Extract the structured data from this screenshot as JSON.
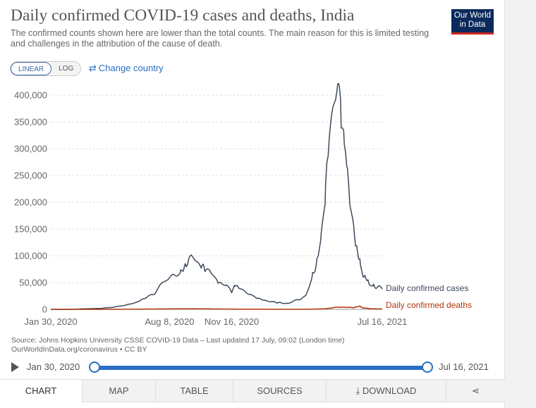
{
  "header": {
    "title": "Daily confirmed COVID-19 cases and deaths, India",
    "subtitle": "The confirmed counts shown here are lower than the total counts. The main reason for this is limited testing and challenges in the attribution of the cause of death.",
    "logo_line1": "Our World",
    "logo_line2": "in Data"
  },
  "controls": {
    "linear_label": "LINEAR",
    "log_label": "LOG",
    "change_country_icon": "swap-arrows-icon",
    "change_country_label": "Change country"
  },
  "chart_data": {
    "type": "line",
    "title": "Daily confirmed COVID-19 cases and deaths, India",
    "ylim": [
      0,
      400000
    ],
    "yticks": [
      0,
      50000,
      100000,
      150000,
      200000,
      250000,
      300000,
      350000,
      400000
    ],
    "ytick_labels": [
      "0",
      "50,000",
      "100,000",
      "150,000",
      "200,000",
      "250,000",
      "300,000",
      "350,000",
      "400,000"
    ],
    "xlim": [
      "2020-01-30",
      "2021-07-16"
    ],
    "xtick_labels": [
      "Jan 30, 2020",
      "Aug 8, 2020",
      "Nov 16, 2020",
      "Jul 16, 2021"
    ],
    "xtick_dates": [
      "2020-01-30",
      "2020-08-08",
      "2020-11-16",
      "2021-07-16"
    ],
    "grid": "horizontal-dashed",
    "colors": {
      "cases": "#3e4a5b",
      "deaths": "#b13507"
    },
    "series": [
      {
        "name": "Daily confirmed cases",
        "points": [
          [
            "2020-01-30",
            0
          ],
          [
            "2020-03-01",
            0
          ],
          [
            "2020-03-31",
            1200
          ],
          [
            "2020-04-20",
            1800
          ],
          [
            "2020-05-10",
            4000
          ],
          [
            "2020-05-31",
            8000
          ],
          [
            "2020-06-20",
            15000
          ],
          [
            "2020-07-05",
            24000
          ],
          [
            "2020-07-15",
            30000
          ],
          [
            "2020-07-25",
            48000
          ],
          [
            "2020-08-05",
            55000
          ],
          [
            "2020-08-15",
            65000
          ],
          [
            "2020-08-25",
            68000
          ],
          [
            "2020-09-01",
            78000
          ],
          [
            "2020-09-08",
            90000
          ],
          [
            "2020-09-12",
            97000
          ],
          [
            "2020-09-16",
            97500
          ],
          [
            "2020-09-20",
            92000
          ],
          [
            "2020-09-24",
            86000
          ],
          [
            "2020-09-28",
            80000
          ],
          [
            "2020-10-01",
            83000
          ],
          [
            "2020-10-06",
            72000
          ],
          [
            "2020-10-12",
            70000
          ],
          [
            "2020-10-18",
            62000
          ],
          [
            "2020-10-24",
            52000
          ],
          [
            "2020-10-31",
            48000
          ],
          [
            "2020-11-08",
            46000
          ],
          [
            "2020-11-16",
            30000
          ],
          [
            "2020-11-20",
            45000
          ],
          [
            "2020-11-27",
            42000
          ],
          [
            "2020-12-05",
            36000
          ],
          [
            "2020-12-15",
            27000
          ],
          [
            "2020-12-25",
            22000
          ],
          [
            "2021-01-05",
            18000
          ],
          [
            "2021-01-15",
            15000
          ],
          [
            "2021-01-25",
            13000
          ],
          [
            "2021-02-05",
            12000
          ],
          [
            "2021-02-15",
            11000
          ],
          [
            "2021-02-25",
            16000
          ],
          [
            "2021-03-05",
            18000
          ],
          [
            "2021-03-15",
            26000
          ],
          [
            "2021-03-25",
            59000
          ],
          [
            "2021-04-01",
            81000
          ],
          [
            "2021-04-08",
            126000
          ],
          [
            "2021-04-15",
            200000
          ],
          [
            "2021-04-22",
            332000
          ],
          [
            "2021-04-30",
            386000
          ],
          [
            "2021-05-06",
            414000
          ],
          [
            "2021-05-10",
            370000
          ],
          [
            "2021-05-15",
            326000
          ],
          [
            "2021-05-20",
            276000
          ],
          [
            "2021-05-25",
            208000
          ],
          [
            "2021-05-31",
            153000
          ],
          [
            "2021-06-05",
            114000
          ],
          [
            "2021-06-10",
            92000
          ],
          [
            "2021-06-15",
            62000
          ],
          [
            "2021-06-20",
            59000
          ],
          [
            "2021-06-25",
            48000
          ],
          [
            "2021-07-01",
            46000
          ],
          [
            "2021-07-06",
            40000
          ],
          [
            "2021-07-10",
            42000
          ],
          [
            "2021-07-16",
            38000
          ]
        ]
      },
      {
        "name": "Daily confirmed deaths",
        "points": [
          [
            "2020-01-30",
            0
          ],
          [
            "2020-03-31",
            20
          ],
          [
            "2020-05-15",
            120
          ],
          [
            "2020-06-15",
            350
          ],
          [
            "2020-07-15",
            600
          ],
          [
            "2020-08-15",
            950
          ],
          [
            "2020-09-15",
            1150
          ],
          [
            "2020-10-15",
            800
          ],
          [
            "2020-11-15",
            450
          ],
          [
            "2020-12-15",
            350
          ],
          [
            "2021-01-15",
            180
          ],
          [
            "2021-02-15",
            100
          ],
          [
            "2021-03-15",
            150
          ],
          [
            "2021-04-01",
            450
          ],
          [
            "2021-04-15",
            1100
          ],
          [
            "2021-05-01",
            3500
          ],
          [
            "2021-05-15",
            4100
          ],
          [
            "2021-06-01",
            3200
          ],
          [
            "2021-06-10",
            6100
          ],
          [
            "2021-06-15",
            2500
          ],
          [
            "2021-07-01",
            1100
          ],
          [
            "2021-07-16",
            700
          ]
        ]
      }
    ]
  },
  "source": {
    "line1": "Source: Johns Hopkins University CSSE COVID-19 Data – Last updated 17 July, 09:02 (London time)",
    "line2": "OurWorldInData.org/coronavirus • CC BY"
  },
  "timeline": {
    "start_label": "Jan 30, 2020",
    "end_label": "Jul 16, 2021"
  },
  "tabs": [
    {
      "label": "CHART",
      "icon": ""
    },
    {
      "label": "MAP",
      "icon": ""
    },
    {
      "label": "TABLE",
      "icon": ""
    },
    {
      "label": "SOURCES",
      "icon": ""
    },
    {
      "label": "DOWNLOAD",
      "icon": "download-icon"
    },
    {
      "label": "",
      "icon": "share-icon"
    }
  ]
}
